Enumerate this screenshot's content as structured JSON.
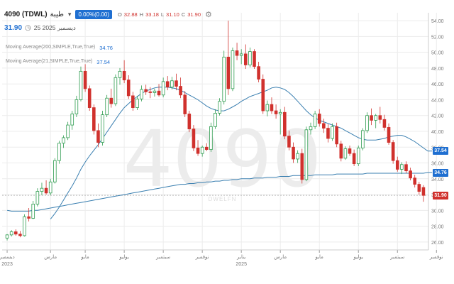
{
  "header": {
    "symbol": "4090 (TDWL)",
    "name": "طيبة",
    "change_badge": "0.00%(0.00)",
    "ohlc": [
      {
        "k": "O",
        "v": "32.88"
      },
      {
        "k": "H",
        "v": "33.18"
      },
      {
        "k": "L",
        "v": "31.10"
      },
      {
        "k": "C",
        "v": "31.90"
      }
    ],
    "price": "31.90",
    "date": "25 ديسمبر 2025"
  },
  "indicators": [
    {
      "label": "Moving Average(200,SIMPLE,True,True)",
      "value": "34.76"
    },
    {
      "label": "Moving Average(21,SIMPLE,True,True)",
      "value": "37.54"
    }
  ],
  "price_badges": [
    {
      "label": "37.54",
      "y": 37.54,
      "color": "#1f6fd1"
    },
    {
      "label": "34.76",
      "y": 34.76,
      "color": "#1f6fd1"
    },
    {
      "label": "31.90",
      "y": 31.9,
      "color": "#d0312d"
    }
  ],
  "watermark": "4090",
  "watermark_sub": "DWELFN",
  "colors": {
    "up": "#2e9c4f",
    "down": "#d0312d",
    "ma": "#3a7fb0",
    "grid": "#ececec",
    "axis_text": "#777777"
  },
  "chart_data": {
    "type": "candlestick",
    "ylim": [
      25,
      55
    ],
    "y_ticks": [
      26,
      28,
      30,
      32,
      34,
      36,
      38,
      40,
      42,
      44,
      46,
      48,
      50,
      52,
      54
    ],
    "y_tick_labels": [
      "26.00",
      "28.00",
      "30.00",
      "32.00",
      "34.00",
      "36.00",
      "38.00",
      "40.00",
      "42.00",
      "44.00",
      "46.00",
      "48.00",
      "50.00",
      "52.00",
      "54.00"
    ],
    "x_ticks": [
      {
        "i": 0,
        "label": "ديسمبر",
        "year": "2023"
      },
      {
        "i": 10,
        "label": "مارس",
        "year": ""
      },
      {
        "i": 18,
        "label": "مايو",
        "year": ""
      },
      {
        "i": 27,
        "label": "يوليو",
        "year": ""
      },
      {
        "i": 36,
        "label": "سبتمبر",
        "year": ""
      },
      {
        "i": 45,
        "label": "نوفمبر",
        "year": ""
      },
      {
        "i": 54,
        "label": "يناير",
        "year": "2025"
      },
      {
        "i": 63,
        "label": "مارس",
        "year": ""
      },
      {
        "i": 72,
        "label": "مايو",
        "year": ""
      },
      {
        "i": 81,
        "label": "يوليو",
        "year": ""
      },
      {
        "i": 90,
        "label": "سبتمبر",
        "year": ""
      },
      {
        "i": 99,
        "label": "نوفمبر",
        "year": ""
      }
    ],
    "series": [
      {
        "name": "price",
        "kind": "ohlc",
        "values": [
          [
            26.5,
            27.0,
            26.2,
            26.9
          ],
          [
            26.9,
            27.5,
            26.7,
            27.3
          ],
          [
            27.3,
            27.6,
            26.8,
            27.0
          ],
          [
            27.0,
            27.4,
            26.6,
            26.8
          ],
          [
            26.8,
            29.5,
            26.7,
            29.2
          ],
          [
            29.2,
            30.3,
            28.6,
            29.0
          ],
          [
            29.0,
            31.2,
            28.9,
            30.8
          ],
          [
            30.8,
            32.8,
            30.5,
            32.4
          ],
          [
            32.4,
            33.5,
            31.9,
            32.8
          ],
          [
            32.8,
            33.8,
            32.0,
            32.2
          ],
          [
            32.2,
            34.0,
            31.9,
            33.6
          ],
          [
            33.6,
            36.6,
            33.4,
            36.3
          ],
          [
            36.3,
            38.8,
            35.9,
            38.5
          ],
          [
            38.5,
            39.5,
            37.9,
            39.2
          ],
          [
            39.2,
            41.2,
            38.9,
            40.8
          ],
          [
            40.8,
            42.6,
            40.2,
            42.2
          ],
          [
            42.2,
            44.5,
            41.8,
            44.0
          ],
          [
            44.0,
            48.2,
            43.8,
            47.6
          ],
          [
            47.6,
            48.5,
            45.0,
            45.4
          ],
          [
            45.4,
            45.8,
            42.6,
            43.0
          ],
          [
            43.0,
            43.4,
            39.6,
            40.1
          ],
          [
            40.1,
            41.0,
            38.0,
            38.6
          ],
          [
            38.6,
            42.6,
            38.2,
            42.1
          ],
          [
            42.1,
            44.6,
            41.8,
            44.2
          ],
          [
            44.2,
            45.4,
            43.0,
            43.5
          ],
          [
            43.5,
            47.2,
            43.2,
            46.8
          ],
          [
            46.8,
            48.0,
            45.9,
            47.6
          ],
          [
            47.6,
            49.0,
            46.1,
            46.5
          ],
          [
            46.5,
            47.1,
            44.1,
            44.5
          ],
          [
            44.5,
            45.0,
            42.6,
            43.0
          ],
          [
            43.0,
            44.5,
            42.7,
            44.1
          ],
          [
            44.1,
            45.8,
            43.8,
            45.3
          ],
          [
            45.3,
            45.9,
            44.6,
            45.0
          ],
          [
            45.0,
            45.6,
            44.2,
            44.9
          ],
          [
            44.9,
            45.4,
            44.4,
            45.1
          ],
          [
            45.1,
            46.0,
            44.4,
            44.6
          ],
          [
            44.6,
            46.8,
            44.3,
            46.3
          ],
          [
            46.3,
            47.0,
            45.2,
            45.6
          ],
          [
            45.6,
            46.9,
            45.3,
            46.4
          ],
          [
            46.4,
            47.3,
            45.2,
            45.7
          ],
          [
            45.7,
            46.8,
            44.2,
            44.6
          ],
          [
            44.6,
            45.1,
            41.8,
            42.2
          ],
          [
            42.2,
            42.6,
            39.9,
            40.3
          ],
          [
            40.3,
            40.8,
            37.5,
            37.9
          ],
          [
            37.9,
            38.9,
            36.9,
            37.2
          ],
          [
            37.2,
            38.2,
            36.8,
            38.0
          ],
          [
            38.0,
            38.5,
            37.5,
            37.7
          ],
          [
            37.7,
            41.1,
            37.4,
            40.6
          ],
          [
            40.6,
            42.8,
            40.3,
            42.3
          ],
          [
            42.3,
            44.2,
            42.0,
            43.8
          ],
          [
            43.8,
            50.2,
            43.4,
            49.4
          ],
          [
            49.4,
            54.0,
            44.6,
            45.4
          ],
          [
            45.4,
            50.6,
            45.1,
            50.2
          ],
          [
            50.2,
            51.2,
            49.0,
            49.6
          ],
          [
            49.6,
            50.4,
            48.5,
            49.8
          ],
          [
            49.8,
            51.0,
            47.9,
            48.4
          ],
          [
            48.4,
            50.6,
            48.1,
            50.1
          ],
          [
            50.1,
            50.4,
            47.9,
            48.2
          ],
          [
            48.2,
            48.8,
            46.2,
            46.6
          ],
          [
            46.6,
            47.2,
            42.2,
            42.6
          ],
          [
            42.6,
            43.9,
            41.9,
            43.4
          ],
          [
            43.4,
            44.3,
            42.2,
            42.6
          ],
          [
            42.6,
            43.4,
            41.6,
            42.2
          ],
          [
            42.2,
            42.8,
            39.6,
            42.4
          ],
          [
            42.4,
            43.1,
            39.0,
            39.4
          ],
          [
            39.4,
            40.1,
            37.6,
            38.0
          ],
          [
            38.0,
            38.6,
            36.0,
            36.5
          ],
          [
            36.5,
            37.6,
            36.0,
            37.2
          ],
          [
            37.2,
            37.8,
            33.4,
            33.9
          ],
          [
            33.9,
            40.6,
            33.7,
            40.2
          ],
          [
            40.2,
            41.1,
            39.6,
            40.6
          ],
          [
            40.6,
            42.6,
            40.3,
            42.2
          ],
          [
            42.2,
            42.8,
            40.6,
            41.0
          ],
          [
            41.0,
            41.6,
            39.8,
            40.4
          ],
          [
            40.4,
            40.9,
            38.6,
            39.1
          ],
          [
            39.1,
            41.0,
            38.8,
            40.6
          ],
          [
            40.6,
            41.1,
            38.0,
            38.4
          ],
          [
            38.4,
            38.8,
            36.2,
            36.6
          ],
          [
            36.6,
            38.1,
            36.4,
            37.8
          ],
          [
            37.8,
            38.2,
            36.9,
            37.2
          ],
          [
            37.2,
            37.7,
            35.6,
            35.9
          ],
          [
            35.9,
            38.2,
            35.6,
            37.9
          ],
          [
            37.9,
            40.4,
            37.6,
            40.1
          ],
          [
            40.1,
            42.4,
            39.8,
            42.0
          ],
          [
            42.0,
            42.9,
            40.8,
            41.4
          ],
          [
            41.4,
            42.2,
            40.4,
            42.0
          ],
          [
            42.0,
            43.1,
            41.0,
            41.5
          ],
          [
            41.5,
            42.1,
            40.1,
            40.5
          ],
          [
            40.5,
            41.0,
            38.3,
            38.6
          ],
          [
            38.6,
            38.9,
            35.9,
            36.3
          ],
          [
            36.3,
            36.8,
            34.9,
            35.2
          ],
          [
            35.2,
            36.1,
            34.6,
            35.8
          ],
          [
            35.8,
            36.2,
            34.7,
            35.0
          ],
          [
            35.0,
            35.4,
            33.8,
            34.1
          ],
          [
            34.1,
            34.5,
            32.9,
            33.3
          ],
          [
            33.3,
            33.6,
            32.0,
            32.4
          ],
          [
            32.9,
            33.2,
            31.1,
            31.9
          ]
        ]
      },
      {
        "name": "Moving Average(200,SIMPLE,True,True)",
        "values": [
          30.0,
          29.9,
          29.9,
          29.9,
          29.9,
          29.9,
          30.0,
          30.0,
          30.1,
          30.2,
          30.3,
          30.4,
          30.5,
          30.6,
          30.7,
          30.8,
          30.9,
          31.0,
          31.1,
          31.2,
          31.3,
          31.4,
          31.5,
          31.6,
          31.7,
          31.8,
          31.9,
          32.0,
          32.1,
          32.2,
          32.3,
          32.4,
          32.5,
          32.6,
          32.7,
          32.8,
          32.9,
          33.0,
          33.1,
          33.2,
          33.3,
          33.3,
          33.4,
          33.4,
          33.5,
          33.5,
          33.6,
          33.6,
          33.7,
          33.7,
          33.8,
          33.8,
          33.9,
          33.9,
          34.0,
          34.0,
          34.0,
          34.1,
          34.1,
          34.1,
          34.2,
          34.2,
          34.2,
          34.3,
          34.3,
          34.3,
          34.4,
          34.4,
          34.4,
          34.4,
          34.4,
          34.5,
          34.5,
          34.5,
          34.5,
          34.5,
          34.6,
          34.6,
          34.6,
          34.6,
          34.6,
          34.6,
          34.6,
          34.7,
          34.7,
          34.7,
          34.7,
          34.7,
          34.7,
          34.7,
          34.7,
          34.7,
          34.7,
          34.7,
          34.7,
          34.7,
          34.7,
          34.8,
          34.8
        ]
      },
      {
        "name": "Moving Average(21,SIMPLE,True,True)",
        "values": [
          null,
          null,
          null,
          null,
          null,
          null,
          null,
          null,
          null,
          null,
          28.9,
          29.6,
          30.4,
          31.3,
          32.2,
          33.1,
          34.1,
          35.2,
          36.1,
          36.9,
          37.6,
          38.3,
          39.1,
          39.9,
          40.7,
          41.5,
          42.3,
          43.0,
          43.5,
          44.0,
          44.4,
          44.8,
          45.1,
          45.3,
          45.5,
          45.6,
          45.6,
          45.6,
          45.5,
          45.4,
          45.2,
          44.9,
          44.6,
          44.3,
          44.0,
          43.6,
          43.2,
          42.9,
          42.7,
          42.6,
          42.6,
          42.8,
          43.1,
          43.4,
          43.8,
          44.1,
          44.4,
          44.6,
          44.8,
          45.0,
          45.2,
          45.5,
          45.6,
          45.5,
          45.3,
          44.9,
          44.4,
          43.8,
          43.2,
          42.6,
          42.1,
          41.7,
          41.4,
          41.2,
          41.0,
          40.8,
          40.6,
          40.4,
          40.1,
          39.8,
          39.5,
          39.2,
          39.0,
          38.9,
          38.9,
          38.9,
          39.0,
          39.1,
          39.3,
          39.4,
          39.5,
          39.5,
          39.3,
          39.0,
          38.7,
          38.3,
          37.9,
          37.5,
          37.5
        ]
      }
    ]
  }
}
